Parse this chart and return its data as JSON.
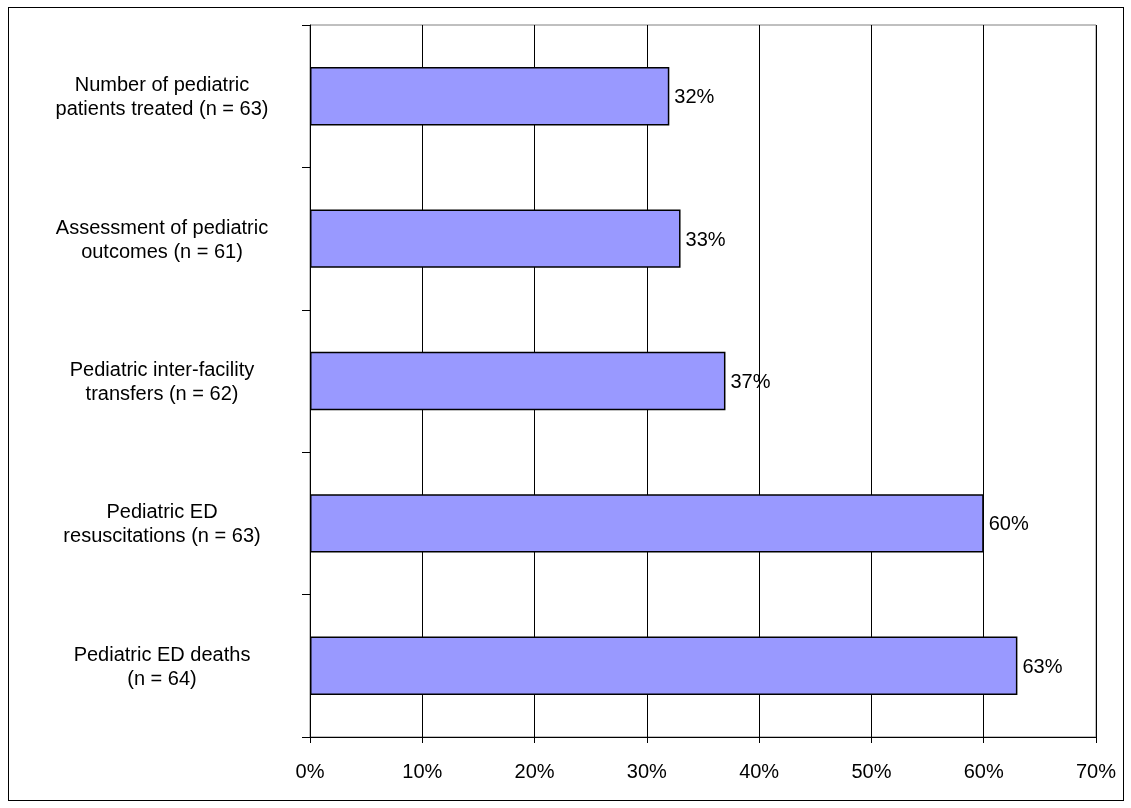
{
  "chart_data": {
    "type": "bar",
    "orientation": "horizontal",
    "categories": [
      "Number of pediatric patients treated (n = 63)",
      "Assessment of pediatric outcomes (n = 61)",
      "Pediatric inter-facility transfers (n = 62)",
      "Pediatric ED resuscitations (n = 63)",
      "Pediatric ED deaths (n = 64)"
    ],
    "values": [
      32,
      33,
      37,
      60,
      63
    ],
    "color": "#9999ff",
    "value_labels": [
      "32%",
      "33%",
      "37%",
      "60%",
      "63%"
    ],
    "xlim": [
      0,
      70
    ],
    "xticks": [
      {
        "value": 0,
        "label": "0%"
      },
      {
        "value": 10,
        "label": "10%"
      },
      {
        "value": 20,
        "label": "20%"
      },
      {
        "value": 30,
        "label": "30%"
      },
      {
        "value": 40,
        "label": "40%"
      },
      {
        "value": 50,
        "label": "50%"
      },
      {
        "value": 60,
        "label": "60%"
      },
      {
        "value": 70,
        "label": "70%"
      }
    ],
    "grid": "x"
  }
}
